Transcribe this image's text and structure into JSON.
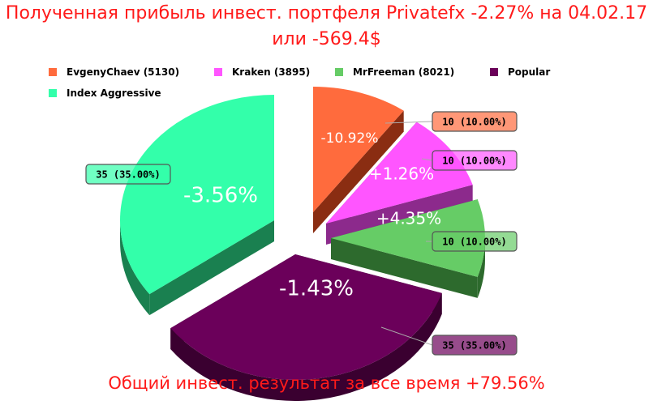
{
  "header": {
    "title_line1": "Полученная прибыль инвест. портфеля Privatefx -2.27% на 04.02.17",
    "title_line2": "или -569.4$"
  },
  "footer": {
    "text": "Общий инвест. результат за все время +79.56%"
  },
  "colors": {
    "title": "#ff1a1a"
  },
  "chart_data": {
    "type": "pie",
    "title": "Полученная прибыль инвест. портфеля Privatefx -2.27% на 04.02.17 или -569.4$",
    "legend_position": "top",
    "series": [
      {
        "name": "EvgenyChaev (5130)",
        "value": 10,
        "percent": "10.00%",
        "callout": "10 (10.00%)",
        "inner_label": "-10.92%",
        "color": "#ff6b3d",
        "side": "#8a2d12"
      },
      {
        "name": "Kraken (3895)",
        "value": 10,
        "percent": "10.00%",
        "callout": "10 (10.00%)",
        "inner_label": "+1.26%",
        "color": "#ff55ff",
        "side": "#8c2a8c"
      },
      {
        "name": "MrFreeman (8021)",
        "value": 10,
        "percent": "10.00%",
        "callout": "10 (10.00%)",
        "inner_label": "+4.35%",
        "color": "#66cc66",
        "side": "#2d6a2d"
      },
      {
        "name": "Popular",
        "value": 35,
        "percent": "35.00%",
        "callout": "35 (35.00%)",
        "inner_label": "-1.43%",
        "color": "#6b005a",
        "side": "#3a0030"
      },
      {
        "name": "Index Aggressive",
        "value": 35,
        "percent": "35.00%",
        "callout": "35 (35.00%)",
        "inner_label": "-3.56%",
        "color": "#33ffaa",
        "side": "#1a8050"
      }
    ]
  }
}
